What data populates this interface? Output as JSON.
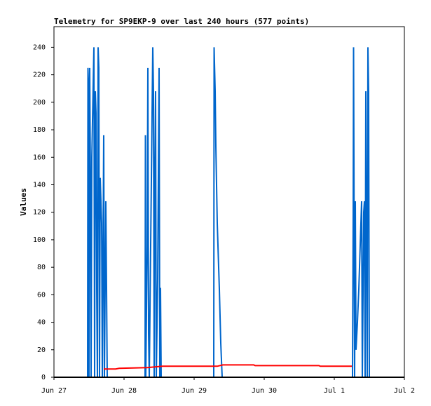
{
  "chart_data": {
    "type": "line",
    "title": "Telemetry for SP9EKP-9 over last 240 hours (577 points)",
    "y_label": "Values",
    "xlim": [
      0,
      5
    ],
    "ylim": [
      0,
      255
    ],
    "xticks": [
      {
        "value": 0,
        "label": "Jun 27"
      },
      {
        "value": 1,
        "label": "Jun 28"
      },
      {
        "value": 2,
        "label": "Jun 29"
      },
      {
        "value": 3,
        "label": "Jun 30"
      },
      {
        "value": 4,
        "label": "Jul 1"
      },
      {
        "value": 5,
        "label": "Jul 2"
      }
    ],
    "yticks": [
      0,
      20,
      40,
      60,
      80,
      100,
      120,
      140,
      160,
      180,
      200,
      220,
      240
    ],
    "series": [
      {
        "color": "#0066cc",
        "x": [
          0.48,
          0.485,
          0.495,
          0.5,
          0.51,
          0.52,
          0.53,
          0.54,
          0.57,
          0.58,
          0.59,
          0.6,
          0.61,
          0.62,
          0.63,
          0.64,
          0.65,
          0.66,
          0.68,
          0.69,
          0.71,
          0.72,
          0.74,
          0.75,
          0.76,
          1.3,
          1.305,
          1.31,
          1.33,
          1.34,
          1.35,
          1.36,
          1.41,
          1.42,
          1.43,
          1.44,
          1.45,
          1.46,
          1.48,
          1.5,
          1.51,
          1.52,
          1.53,
          2.28,
          2.285,
          2.3,
          2.31,
          2.33,
          2.36,
          2.38,
          2.4,
          4.26,
          4.27,
          4.275,
          4.28,
          4.29,
          4.3,
          4.31,
          4.33,
          4.35,
          4.37,
          4.39,
          4.4,
          4.42,
          4.43,
          4.44,
          4.45,
          4.47,
          4.48,
          4.49,
          4.5
        ],
        "values": [
          0,
          225,
          208,
          0,
          225,
          145,
          0,
          160,
          240,
          0,
          208,
          192,
          65,
          0,
          240,
          225,
          0,
          145,
          112,
          0,
          176,
          0,
          128,
          65,
          0,
          0,
          176,
          0,
          96,
          225,
          32,
          0,
          240,
          208,
          0,
          145,
          208,
          0,
          72,
          225,
          0,
          65,
          0,
          0,
          240,
          208,
          168,
          112,
          64,
          25,
          0,
          0,
          120,
          240,
          160,
          0,
          128,
          20,
          40,
          64,
          96,
          128,
          0,
          120,
          128,
          0,
          208,
          0,
          240,
          208,
          0
        ]
      },
      {
        "color": "#ff0000",
        "x": [
          0.71,
          0.88,
          0.93,
          1.33,
          1.55,
          2.33,
          2.41,
          2.85,
          2.87,
          3.78,
          3.8,
          4.25
        ],
        "values": [
          6,
          6,
          6.5,
          7,
          8,
          8,
          9,
          9,
          8.5,
          8.5,
          8,
          8
        ]
      },
      {
        "color": "#000000",
        "x": [
          0,
          5
        ],
        "values": [
          0,
          0
        ]
      }
    ]
  }
}
